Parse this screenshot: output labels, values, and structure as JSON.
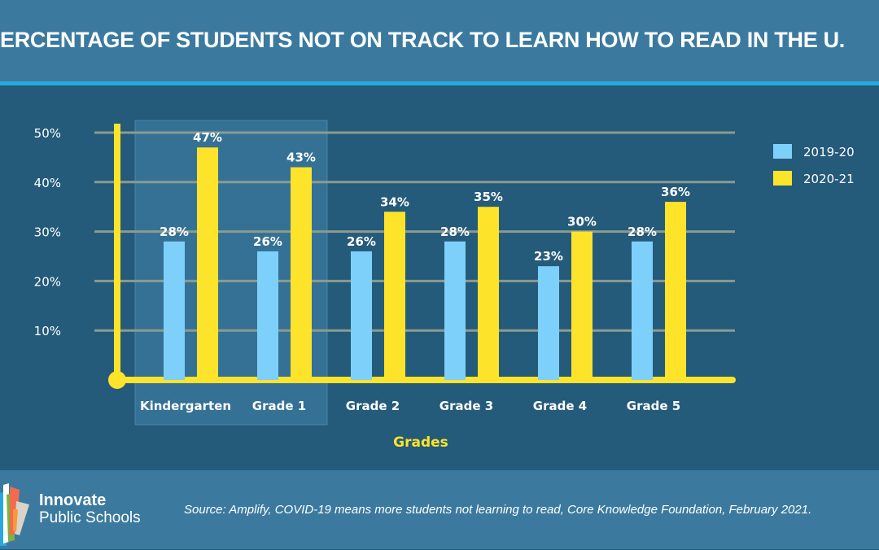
{
  "header": {
    "title": "ERCENTAGE OF STUDENTS NOT ON TRACK TO LEARN HOW TO READ IN THE U."
  },
  "footer": {
    "logo_line1": "Innovate",
    "logo_line2": "Public Schools",
    "source": "Source: Amplify, COVID-19 means more students not learning to read, Core Knowledge Foundation, February 2021."
  },
  "colors": {
    "series_2019": "#7dd0fa",
    "series_2020": "#fde42b",
    "axis": "#fde42b",
    "background": "#245a7a",
    "header": "#3b7a9e",
    "accent": "#29a8e0"
  },
  "chart_data": {
    "type": "bar",
    "title": "",
    "xlabel": "Grades",
    "ylabel": "",
    "ylim": [
      0,
      50
    ],
    "yticks": [
      "10%",
      "20%",
      "30%",
      "40%",
      "50%"
    ],
    "ytick_values": [
      10,
      20,
      30,
      40,
      50
    ],
    "grid": true,
    "legend_position": "top-right",
    "highlighted_categories": [
      "Kindergarten",
      "Grade 1"
    ],
    "categories": [
      "Kindergarten",
      "Grade 1",
      "Grade 2",
      "Grade 3",
      "Grade 4",
      "Grade 5"
    ],
    "series": [
      {
        "name": "2019-20",
        "values": [
          28,
          26,
          26,
          28,
          23,
          28
        ],
        "labels": [
          "28%",
          "26%",
          "26%",
          "28%",
          "23%",
          "28%"
        ]
      },
      {
        "name": "2020-21",
        "values": [
          47,
          43,
          34,
          35,
          30,
          36
        ],
        "labels": [
          "47%",
          "43%",
          "34%",
          "35%",
          "30%",
          "36%"
        ]
      }
    ]
  }
}
